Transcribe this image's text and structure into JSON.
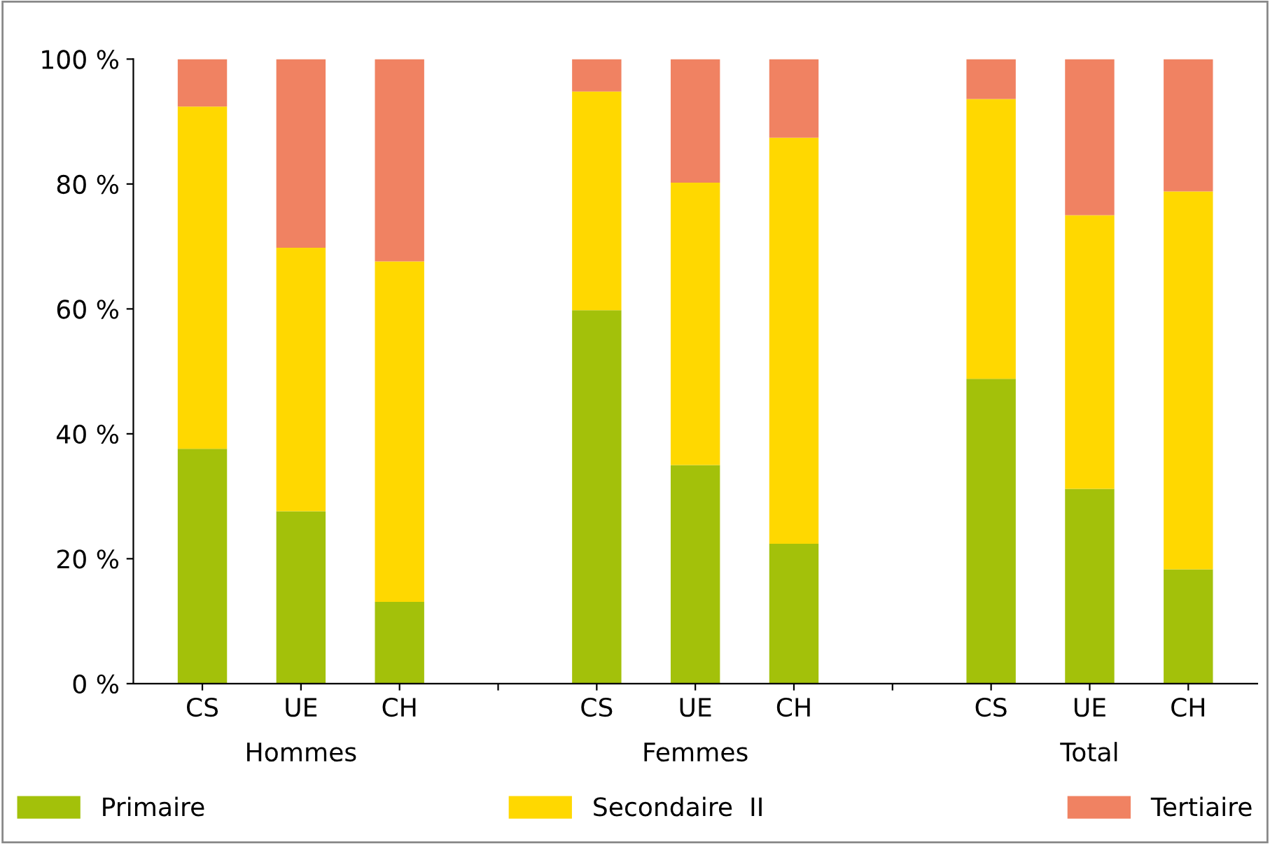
{
  "chart_data": {
    "type": "bar",
    "stacked": true,
    "categories": [
      "CS",
      "UE",
      "CH",
      null,
      "CS",
      "UE",
      "CH",
      null,
      "CS",
      "UE",
      "CH"
    ],
    "annotations": [
      "Hommes",
      "Femmes",
      "Total"
    ],
    "series": [
      {
        "name": "Primaire",
        "color": "#a3c10a",
        "values": [
          37.6,
          27.6,
          13.1,
          null,
          59.8,
          35.0,
          22.4,
          null,
          48.8,
          31.2,
          18.3
        ]
      },
      {
        "name": "Secondaire  II",
        "color": "#ffd800",
        "values": [
          54.8,
          42.2,
          54.5,
          null,
          35.0,
          45.2,
          65.0,
          null,
          44.8,
          43.8,
          60.5
        ]
      },
      {
        "name": "Tertiaire",
        "color": "#f08262",
        "values": [
          7.6,
          30.2,
          32.4,
          null,
          5.2,
          19.8,
          12.6,
          null,
          6.4,
          25.0,
          21.2
        ]
      }
    ],
    "ylim": [
      0,
      100
    ],
    "yticks": [
      {
        "value": 0,
        "label": "0 %"
      },
      {
        "value": 20,
        "label": "20 %"
      },
      {
        "value": 40,
        "label": "40 %"
      },
      {
        "value": 60,
        "label": "60 %"
      },
      {
        "value": 80,
        "label": "80 %"
      },
      {
        "value": 100,
        "label": "100 %"
      }
    ],
    "grid": false,
    "legend": "bottom"
  }
}
